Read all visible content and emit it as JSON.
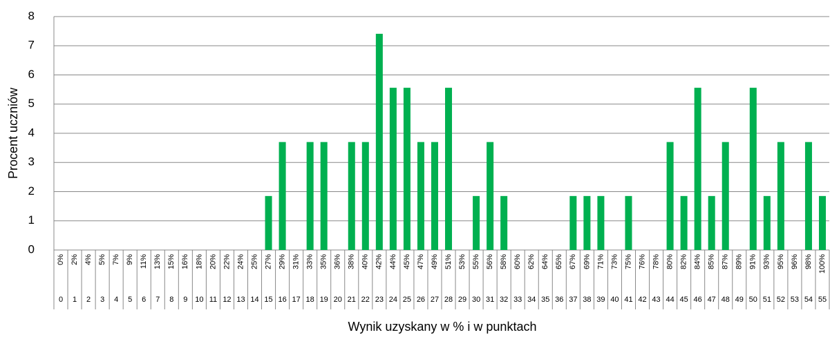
{
  "chart_data": {
    "type": "bar",
    "x_label": "Wynik uzyskany w % i w punktach",
    "y_label": "Procent uczniów",
    "categories": [
      "0",
      "1",
      "2",
      "3",
      "4",
      "5",
      "6",
      "7",
      "8",
      "9",
      "10",
      "11",
      "12",
      "13",
      "14",
      "15",
      "16",
      "17",
      "18",
      "19",
      "20",
      "21",
      "22",
      "23",
      "24",
      "25",
      "26",
      "27",
      "28",
      "29",
      "30",
      "31",
      "32",
      "33",
      "34",
      "35",
      "36",
      "37",
      "38",
      "39",
      "40",
      "41",
      "42",
      "43",
      "44",
      "45",
      "46",
      "47",
      "48",
      "49",
      "50",
      "51",
      "52",
      "53",
      "54",
      "55"
    ],
    "category_percents": [
      "0%",
      "2%",
      "4%",
      "5%",
      "7%",
      "9%",
      "11%",
      "13%",
      "15%",
      "16%",
      "18%",
      "20%",
      "22%",
      "24%",
      "25%",
      "27%",
      "29%",
      "31%",
      "33%",
      "35%",
      "36%",
      "38%",
      "40%",
      "42%",
      "44%",
      "45%",
      "47%",
      "49%",
      "51%",
      "53%",
      "55%",
      "56%",
      "58%",
      "60%",
      "62%",
      "64%",
      "65%",
      "67%",
      "69%",
      "71%",
      "73%",
      "75%",
      "76%",
      "78%",
      "80%",
      "82%",
      "84%",
      "85%",
      "87%",
      "89%",
      "91%",
      "93%",
      "95%",
      "96%",
      "98%",
      "100%"
    ],
    "values": [
      0,
      0,
      0,
      0,
      0,
      0,
      0,
      0,
      0,
      0,
      0,
      0,
      0,
      0,
      0,
      1.85,
      3.7,
      0,
      3.7,
      3.7,
      0,
      3.7,
      3.7,
      7.41,
      5.56,
      5.56,
      3.7,
      3.7,
      5.56,
      0,
      1.85,
      3.7,
      1.85,
      0,
      0,
      0,
      0,
      1.85,
      1.85,
      1.85,
      0,
      1.85,
      0,
      0,
      3.7,
      1.85,
      5.56,
      1.85,
      3.7,
      0,
      5.56,
      1.85,
      3.7,
      0,
      3.7,
      1.85
    ],
    "color": "#00b050",
    "ylim": [
      0,
      8
    ],
    "yticks": [
      0,
      1,
      2,
      3,
      4,
      5,
      6,
      7,
      8
    ],
    "grid": true
  }
}
